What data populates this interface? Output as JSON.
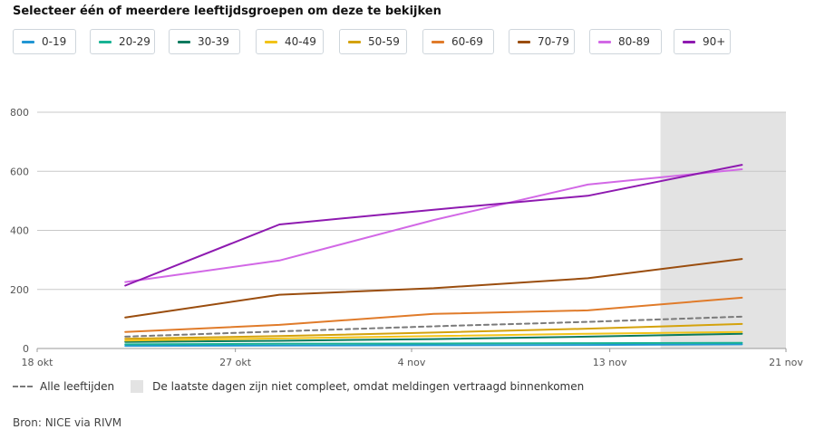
{
  "heading": "Selecteer één of meerdere leeftijdsgroepen om deze te bekijken",
  "filters": [
    {
      "label": "0-19",
      "color": "#2196d3"
    },
    {
      "label": "20-29",
      "color": "#19b394"
    },
    {
      "label": "30-39",
      "color": "#0b7a5e"
    },
    {
      "label": "40-49",
      "color": "#f2c318"
    },
    {
      "label": "50-59",
      "color": "#d4a20c"
    },
    {
      "label": "60-69",
      "color": "#e07b2a"
    },
    {
      "label": "70-79",
      "color": "#9a4d0e"
    },
    {
      "label": "80-89",
      "color": "#d268e6"
    },
    {
      "label": "90+",
      "color": "#8e1ab0"
    }
  ],
  "chart_data": {
    "type": "line",
    "title": "",
    "xlabel": "",
    "ylabel": "",
    "ylim": [
      0,
      800
    ],
    "yticks": [
      0,
      200,
      400,
      600,
      800
    ],
    "x_tick_labels": [
      {
        "label": "18 okt",
        "day": 0
      },
      {
        "label": "27 okt",
        "day": 9
      },
      {
        "label": "4 nov",
        "day": 17
      },
      {
        "label": "13 nov",
        "day": 26
      },
      {
        "label": "21 nov",
        "day": 34
      }
    ],
    "x_range_days": [
      0,
      34
    ],
    "x_days": [
      4,
      11,
      18,
      25,
      32
    ],
    "incomplete_from_day": 28.3,
    "series": [
      {
        "name": "0-19",
        "color": "#2196d3",
        "values": [
          9,
          10,
          11,
          12,
          14
        ]
      },
      {
        "name": "20-29",
        "color": "#19b394",
        "values": [
          14,
          16,
          17,
          18,
          19
        ]
      },
      {
        "name": "30-39",
        "color": "#0b7a5e",
        "values": [
          22,
          26,
          32,
          40,
          50
        ]
      },
      {
        "name": "40-49",
        "color": "#f2c318",
        "values": [
          27,
          34,
          42,
          50,
          56
        ]
      },
      {
        "name": "50-59",
        "color": "#d4a20c",
        "values": [
          33,
          42,
          54,
          67,
          83
        ]
      },
      {
        "name": "60-69",
        "color": "#e07b2a",
        "values": [
          56,
          80,
          117,
          129,
          172
        ]
      },
      {
        "name": "70-79",
        "color": "#9a4d0e",
        "values": [
          105,
          182,
          204,
          238,
          303
        ]
      },
      {
        "name": "80-89",
        "color": "#d268e6",
        "values": [
          225,
          298,
          435,
          555,
          607
        ]
      },
      {
        "name": "90+",
        "color": "#8e1ab0",
        "values": [
          213,
          420,
          470,
          517,
          622
        ]
      },
      {
        "name": "Alle leeftijden",
        "color": "#7a7a7a",
        "dashed": true,
        "values": [
          40,
          58,
          75,
          90,
          108
        ]
      }
    ]
  },
  "legend_all_ages": "Alle leeftijden",
  "legend_incomplete": "De laatste dagen zijn niet compleet, omdat meldingen vertraagd binnenkomen",
  "source": "Bron: NICE via RIVM"
}
